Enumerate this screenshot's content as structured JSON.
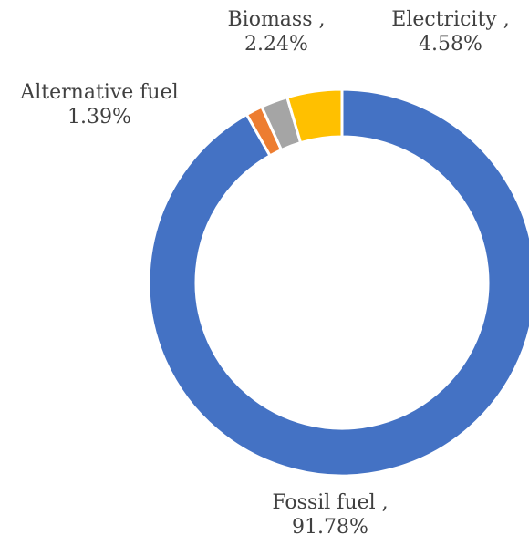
{
  "chart_data": {
    "type": "pie",
    "variant": "donut",
    "title": "",
    "slices": [
      {
        "name": "Fossil fuel",
        "value": 91.78,
        "label": "Fossil fuel ,",
        "value_label": "91.78%",
        "color": "#4472C4"
      },
      {
        "name": "Alternative fuel",
        "value": 1.39,
        "label": "Alternative fuel",
        "value_label": "1.39%",
        "color": "#ED7D31"
      },
      {
        "name": "Biomass",
        "value": 2.24,
        "label": "Biomass ,",
        "value_label": "2.24%",
        "color": "#A5A5A5"
      },
      {
        "name": "Electricity",
        "value": 4.58,
        "label": "Electricity ,",
        "value_label": "4.58%",
        "color": "#FFC000"
      }
    ],
    "legend": "none",
    "data_labels": "outside"
  }
}
